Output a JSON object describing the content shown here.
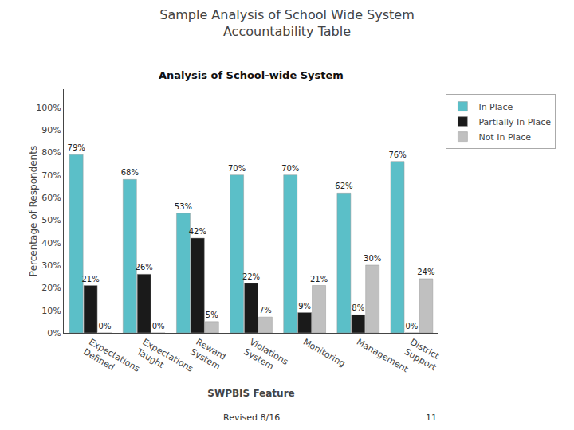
{
  "chart_data": {
    "type": "bar",
    "title": "Sample Analysis of School Wide System\nAccountability Table",
    "subtitle": "Analysis of School-wide System",
    "xlabel": "SWPBIS Feature",
    "ylabel": "Percentage of Respondents",
    "categories": [
      "Expectations\nDefined",
      "Expectations\nTaught",
      "Reward\nSystem",
      "Violations\nSystem",
      "Monitoring",
      "Management",
      "District\nSupport"
    ],
    "series": [
      {
        "name": "In Place",
        "color": "#5BBFC8",
        "values": [
          79,
          68,
          53,
          70,
          70,
          62,
          76
        ],
        "value_labels": [
          "79%",
          "68%",
          "53%",
          "70%",
          "70%",
          "62%",
          "76%"
        ]
      },
      {
        "name": "Partially In Place",
        "color": "#1A1A1A",
        "values": [
          21,
          26,
          42,
          22,
          9,
          8,
          0
        ],
        "value_labels": [
          "21%",
          "26%",
          "42%",
          "22%",
          "9%",
          "8%",
          "0%"
        ]
      },
      {
        "name": "Not In Place",
        "color": "#C0C0C0",
        "values": [
          0,
          0,
          5,
          7,
          21,
          30,
          24
        ],
        "value_labels": [
          "0%",
          "0%",
          "5%",
          "7%",
          "21%",
          "30%",
          "24%"
        ]
      }
    ],
    "ylim": [
      0,
      108
    ],
    "yticks": [
      {
        "value": 0,
        "label": "0%"
      },
      {
        "value": 10,
        "label": "10%"
      },
      {
        "value": 20,
        "label": "20%"
      },
      {
        "value": 30,
        "label": "30%"
      },
      {
        "value": 40,
        "label": "40%"
      },
      {
        "value": 50,
        "label": "50%"
      },
      {
        "value": 60,
        "label": "60%"
      },
      {
        "value": 70,
        "label": "70%"
      },
      {
        "value": 80,
        "label": "80%"
      },
      {
        "value": 90,
        "label": "90%"
      },
      {
        "value": 100,
        "label": "100%"
      }
    ],
    "grid": false,
    "legend": "right",
    "data_labels": true,
    "annotations": [
      {
        "text": "Revised 8/16"
      },
      {
        "text": "11"
      }
    ]
  }
}
